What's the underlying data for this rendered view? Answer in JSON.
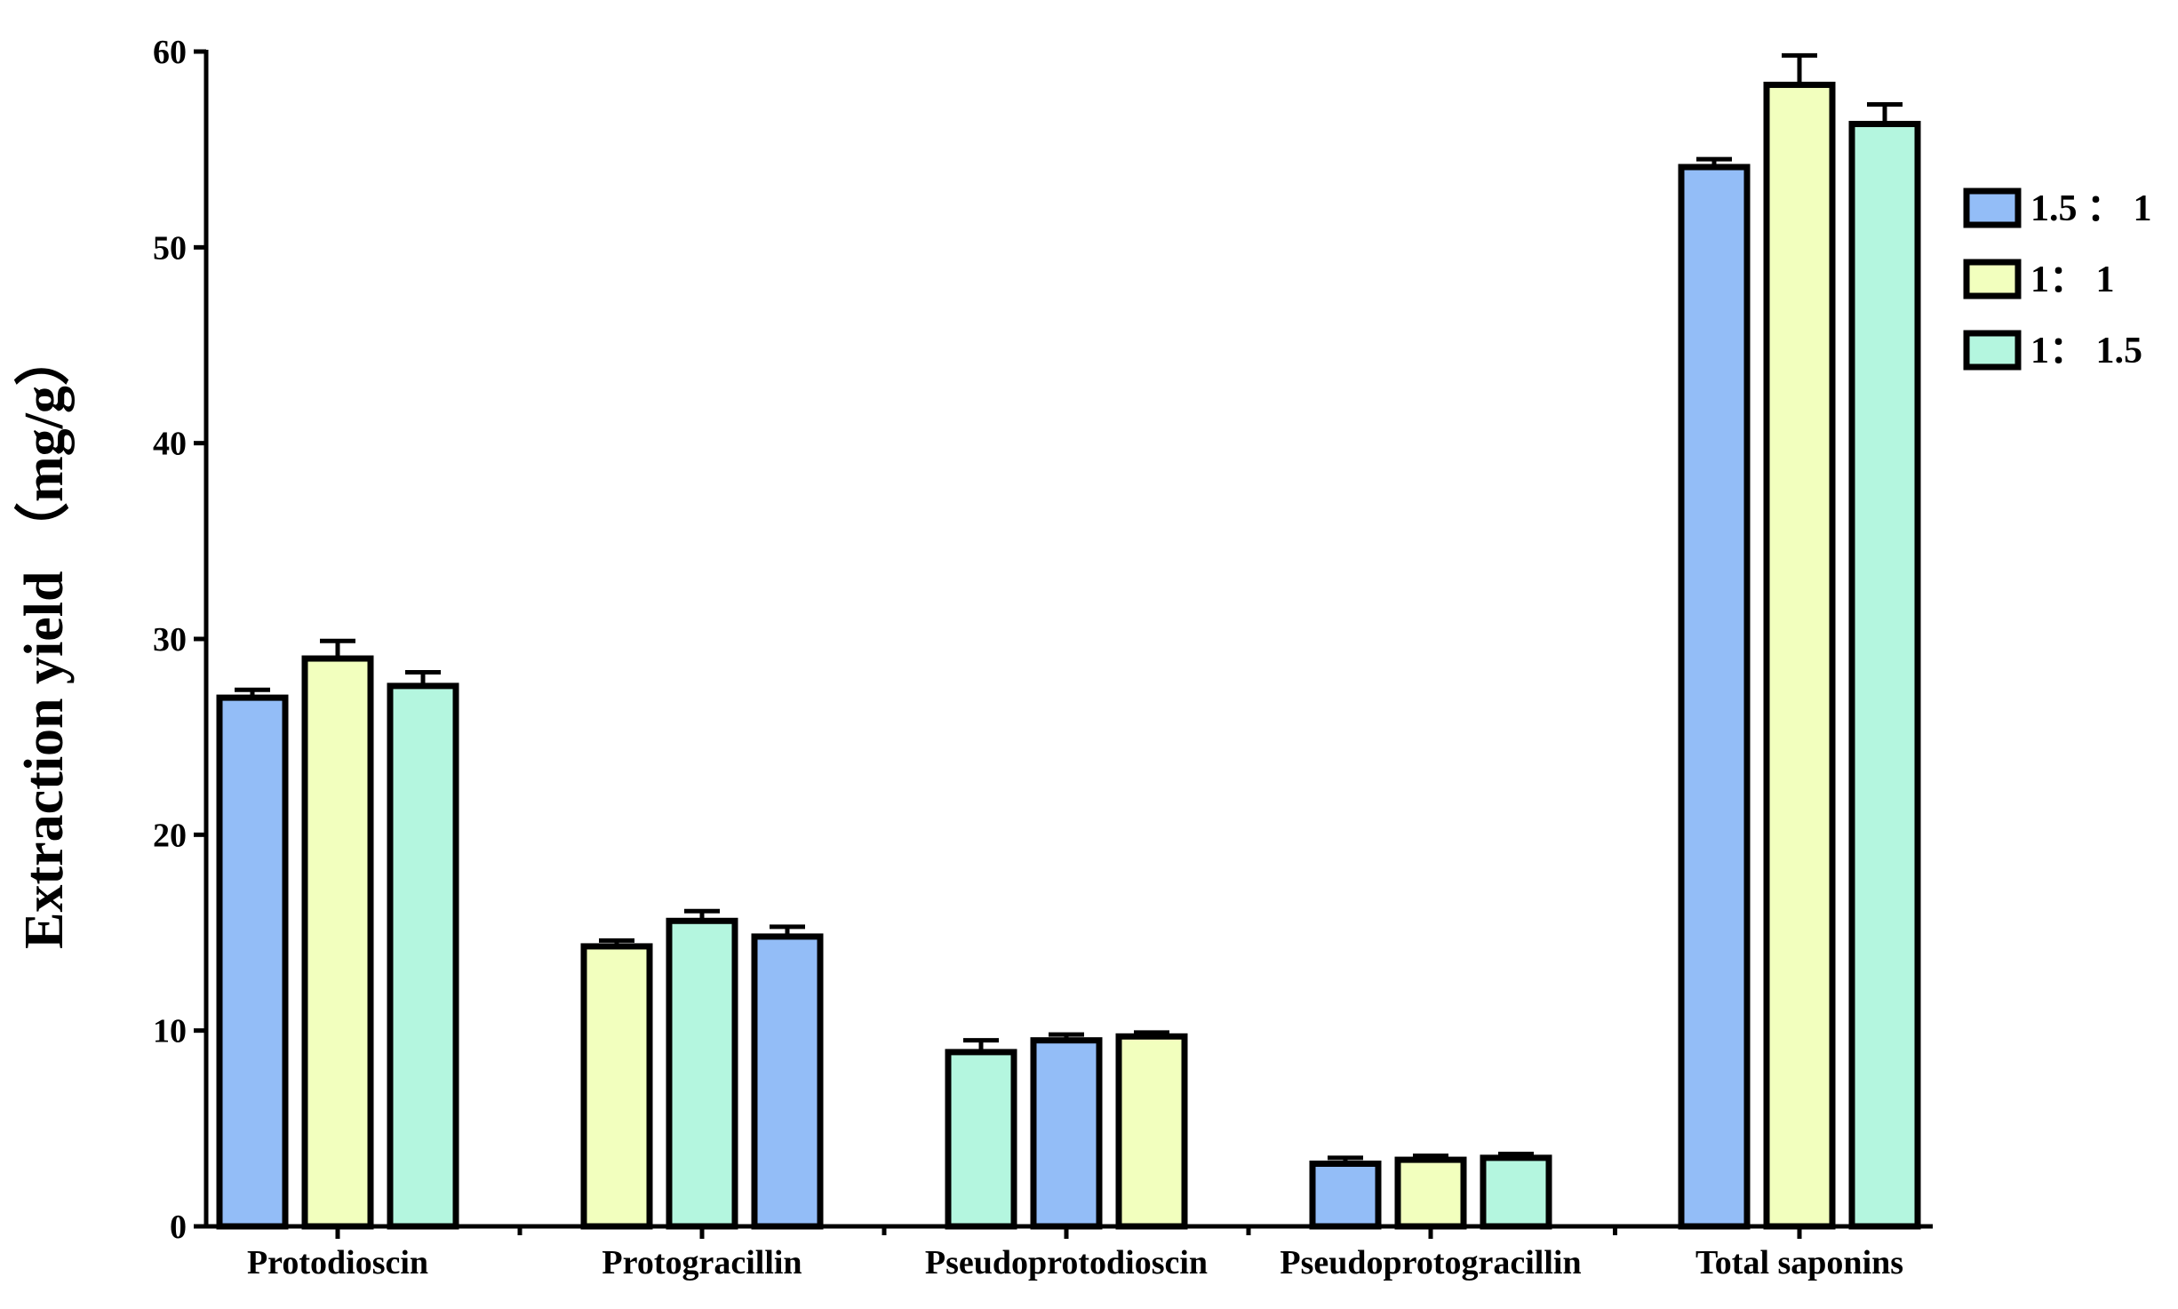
{
  "chart_data": {
    "type": "bar",
    "ylabel": "Extraction yield （mg/g）",
    "ylim": [
      0,
      60
    ],
    "yticks": [
      0,
      10,
      20,
      30,
      40,
      50,
      60
    ],
    "grid": false,
    "legend_position": "right",
    "colors": {
      "1.5 ： 1": "#93bdf7",
      "1： 1": "#f2ffbe",
      "1： 1.5": "#b4f6df"
    },
    "legend": [
      "1.5 ： 1",
      "1： 1",
      "1： 1.5"
    ],
    "categories": [
      {
        "name": "Protodioscin",
        "bars": [
          {
            "series": "1.5 ： 1",
            "value": 27.0,
            "error": 0.4
          },
          {
            "series": "1： 1",
            "value": 29.0,
            "error": 0.9
          },
          {
            "series": "1： 1.5",
            "value": 27.6,
            "error": 0.7
          }
        ]
      },
      {
        "name": "Protogracillin",
        "bars": [
          {
            "series": "1： 1",
            "value": 14.3,
            "error": 0.3
          },
          {
            "series": "1： 1.5",
            "value": 15.6,
            "error": 0.5
          },
          {
            "series": "1.5 ： 1",
            "value": 14.8,
            "error": 0.5
          }
        ]
      },
      {
        "name": "Pseudoprotodioscin",
        "bars": [
          {
            "series": "1： 1.5",
            "value": 8.9,
            "error": 0.6
          },
          {
            "series": "1.5 ： 1",
            "value": 9.5,
            "error": 0.3
          },
          {
            "series": "1： 1",
            "value": 9.7,
            "error": 0.2
          }
        ]
      },
      {
        "name": "Pseudoprotogracillin",
        "bars": [
          {
            "series": "1.5 ： 1",
            "value": 3.2,
            "error": 0.3
          },
          {
            "series": "1： 1",
            "value": 3.4,
            "error": 0.2
          },
          {
            "series": "1： 1.5",
            "value": 3.5,
            "error": 0.2
          }
        ]
      },
      {
        "name": "Total saponins",
        "bars": [
          {
            "series": "1.5 ： 1",
            "value": 54.1,
            "error": 0.4
          },
          {
            "series": "1： 1",
            "value": 58.3,
            "error": 1.5
          },
          {
            "series": "1： 1.5",
            "value": 56.3,
            "error": 1.0
          }
        ]
      }
    ]
  }
}
